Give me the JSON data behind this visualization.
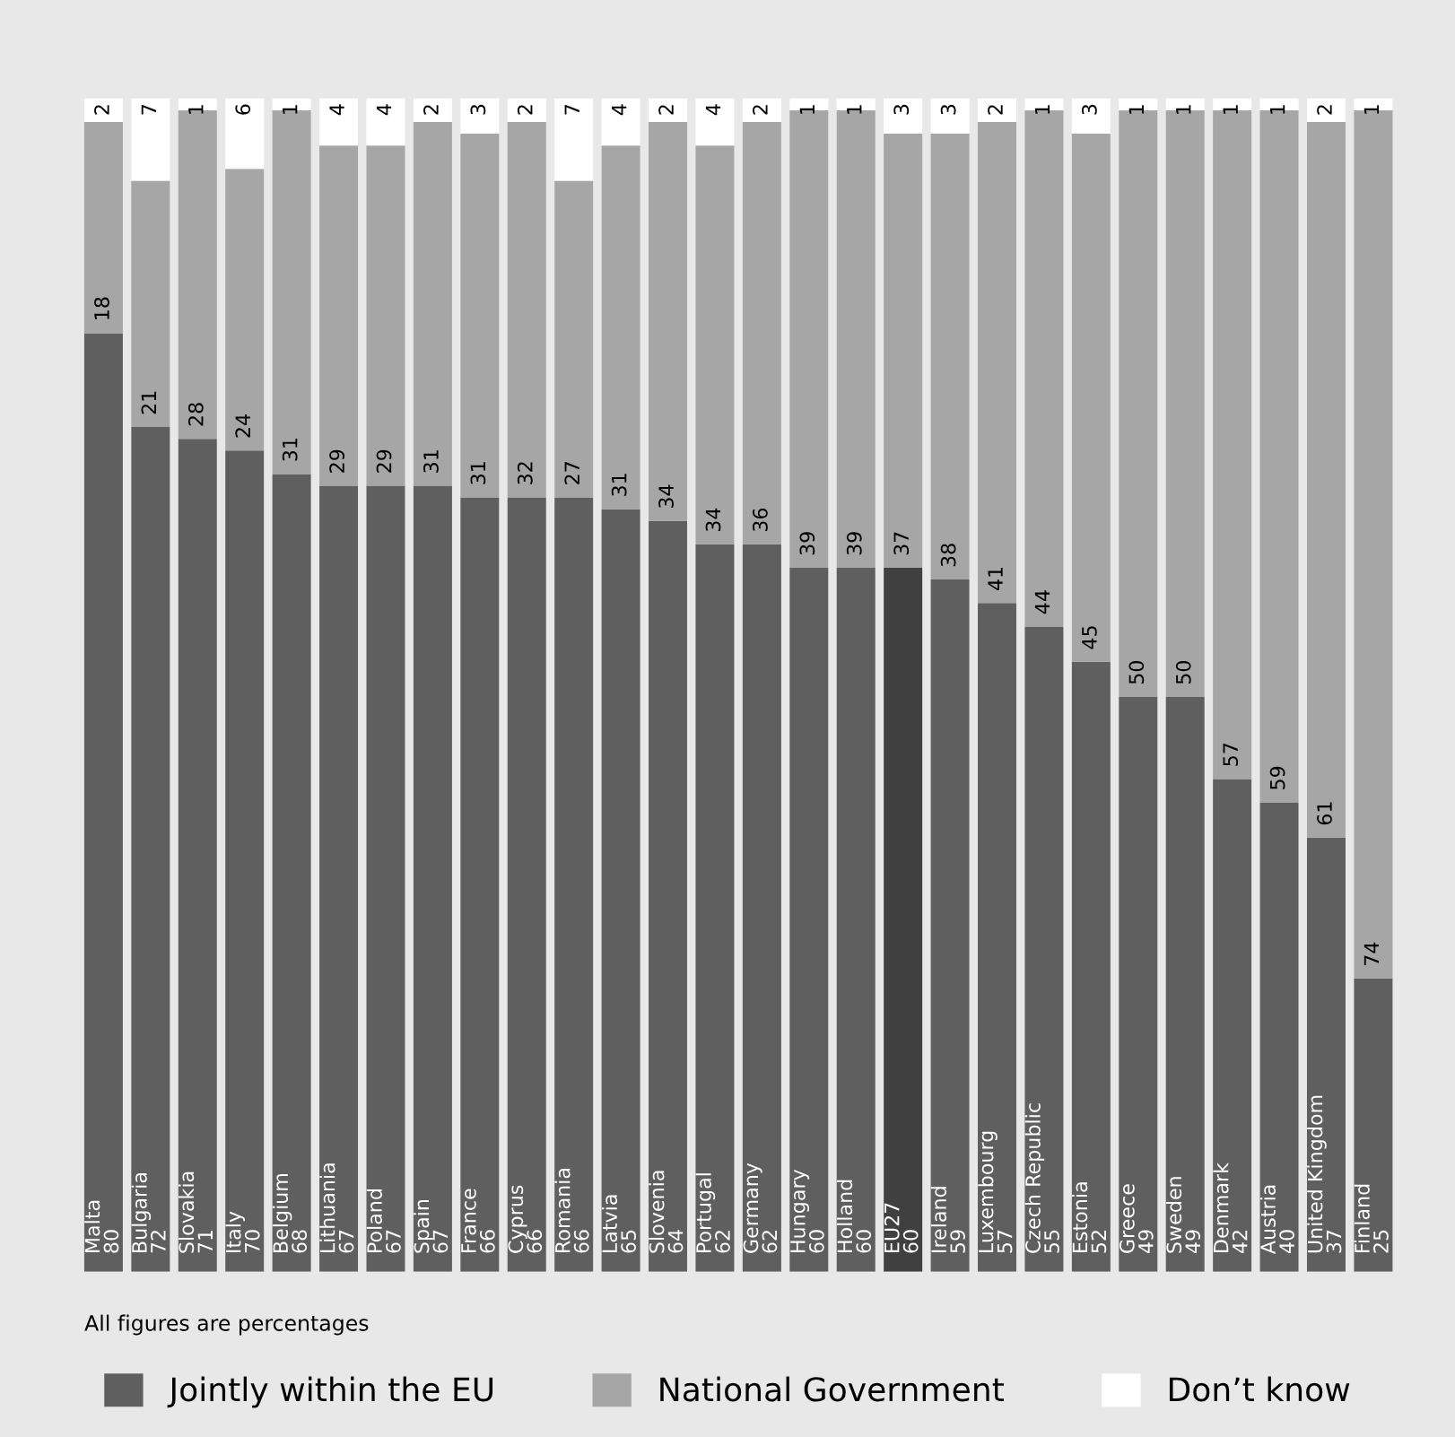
{
  "chart_data": {
    "type": "bar",
    "stacked": true,
    "data_labels": true,
    "legend": "bottom",
    "categories": [
      "Malta",
      "Bulgaria",
      "Slovakia",
      "Italy",
      "Belgium",
      "Lithuania",
      "Poland",
      "Spain",
      "France",
      "Cyprus",
      "Romania",
      "Latvia",
      "Slovenia",
      "Portugal",
      "Germany",
      "Hungary",
      "Holland",
      "EU27",
      "Ireland",
      "Luxembourg",
      "Czech Republic",
      "Estonia",
      "Greece",
      "Sweden",
      "Denmark",
      "Austria",
      "United Kingdom",
      "Finland"
    ],
    "series": [
      {
        "name": "Jointly within the EU",
        "color": "#5f5f5f",
        "colors": [
          "#5f5f5f",
          "#5f5f5f",
          "#5f5f5f",
          "#5f5f5f",
          "#5f5f5f",
          "#5f5f5f",
          "#5f5f5f",
          "#5f5f5f",
          "#5f5f5f",
          "#5f5f5f",
          "#5f5f5f",
          "#5f5f5f",
          "#5f5f5f",
          "#5f5f5f",
          "#5f5f5f",
          "#5f5f5f",
          "#5f5f5f",
          "#404040",
          "#5f5f5f",
          "#5f5f5f",
          "#5f5f5f",
          "#5f5f5f",
          "#5f5f5f",
          "#5f5f5f",
          "#5f5f5f",
          "#5f5f5f",
          "#5f5f5f",
          "#5f5f5f"
        ],
        "values": [
          80,
          72,
          71,
          70,
          68,
          67,
          67,
          67,
          66,
          66,
          66,
          65,
          64,
          62,
          62,
          60,
          60,
          60,
          59,
          57,
          55,
          52,
          49,
          49,
          42,
          40,
          37,
          25
        ]
      },
      {
        "name": "National Government",
        "color": "#a6a6a6",
        "values": [
          18,
          21,
          28,
          24,
          31,
          29,
          29,
          31,
          31,
          32,
          27,
          31,
          34,
          34,
          36,
          39,
          39,
          37,
          38,
          41,
          44,
          45,
          50,
          50,
          57,
          59,
          61,
          74
        ]
      },
      {
        "name": "Don’t know",
        "color": "#ffffff",
        "values": [
          2,
          7,
          1,
          6,
          1,
          4,
          4,
          2,
          3,
          2,
          7,
          4,
          2,
          4,
          2,
          1,
          1,
          3,
          3,
          2,
          1,
          3,
          1,
          1,
          1,
          1,
          2,
          1
        ]
      }
    ],
    "annotations": [
      "All figures are percentages"
    ]
  }
}
